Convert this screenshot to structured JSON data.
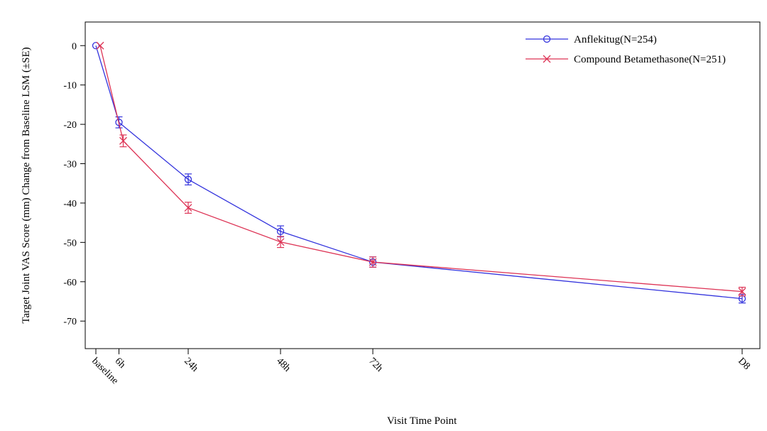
{
  "chart_data": {
    "type": "line",
    "title": "",
    "xlabel": "Visit Time Point",
    "ylabel": "Target Joint VAS Score (mm) Change from Baseline LSM (±SE)",
    "x_categories": [
      "baseline",
      "6h",
      "24h",
      "48h",
      "72h",
      "D8"
    ],
    "x_hours": [
      0,
      6,
      24,
      48,
      72,
      168
    ],
    "ylim": [
      -77,
      6
    ],
    "yticks": [
      0,
      -10,
      -20,
      -30,
      -40,
      -50,
      -60,
      -70
    ],
    "grid": false,
    "legend_position": "top-right",
    "series": [
      {
        "name": "Anflekitug(N=254)",
        "color": "#3333dd",
        "marker": "circle",
        "values": [
          0,
          -19.5,
          -34,
          -47.2,
          -55,
          -64.3
        ],
        "se": [
          0,
          1.4,
          1.4,
          1.4,
          1.3,
          1.1
        ]
      },
      {
        "name": "Compound Betamethasone(N=251)",
        "color": "#dd3355",
        "marker": "x",
        "values": [
          0,
          -24.2,
          -41.2,
          -49.9,
          -55,
          -62.5
        ],
        "se": [
          0,
          1.5,
          1.4,
          1.4,
          1.3,
          1.1
        ]
      }
    ]
  }
}
